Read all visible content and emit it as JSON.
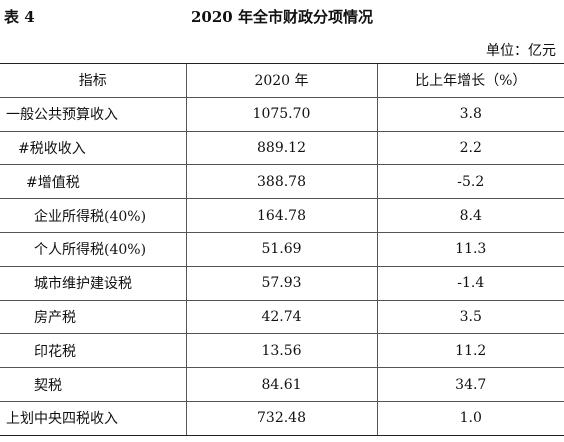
{
  "table_label": "表 4",
  "title": "2020 年全市财政分项情况",
  "unit": "单位：亿元",
  "headers": [
    "指标",
    "2020 年",
    "比上年增长（%）"
  ],
  "rows": [
    {
      "name": "一般公共预算收入",
      "value": "1075.70",
      "growth": "3.8"
    },
    {
      "name": "#税收收入",
      "value": "889.12",
      "growth": "2.2"
    },
    {
      "name": "#增值税",
      "value": "388.78",
      "growth": "-5.2"
    },
    {
      "name": "企业所得税(40%)",
      "value": "164.78",
      "growth": "8.4"
    },
    {
      "name": "个人所得税(40%)",
      "value": "51.69",
      "growth": "11.3"
    },
    {
      "name": "城市维护建设税",
      "value": "57.93",
      "growth": "-1.4"
    },
    {
      "name": "房产税",
      "value": "42.74",
      "growth": "3.5"
    },
    {
      "name": "印花税",
      "value": "13.56",
      "growth": "11.2"
    },
    {
      "name": "契税",
      "value": "84.61",
      "growth": "34.7"
    },
    {
      "name": "上划中央四税收入",
      "value": "732.48",
      "growth": "1.0"
    }
  ]
}
